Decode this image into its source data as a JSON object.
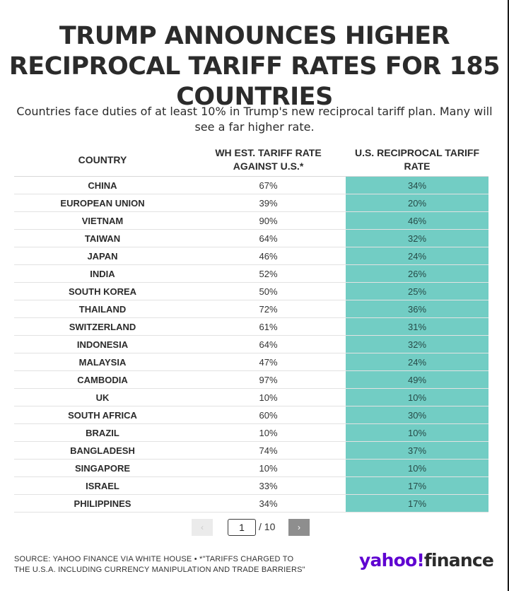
{
  "headline": "TRUMP ANNOUNCES HIGHER RECIPROCAL TARIFF RATES FOR 185 COUNTRIES",
  "subtitle": "Countries face duties of at least 10% in Trump's new reciprocal tariff plan. Many will see a far higher rate.",
  "chart_data": {
    "type": "table",
    "columns": [
      "COUNTRY",
      "WH EST. TARIFF RATE AGAINST U.S.*",
      "U.S. RECIPROCAL TARIFF RATE"
    ],
    "rows": [
      [
        "CHINA",
        "67%",
        "34%"
      ],
      [
        "EUROPEAN UNION",
        "39%",
        "20%"
      ],
      [
        "VIETNAM",
        "90%",
        "46%"
      ],
      [
        "TAIWAN",
        "64%",
        "32%"
      ],
      [
        "JAPAN",
        "46%",
        "24%"
      ],
      [
        "INDIA",
        "52%",
        "26%"
      ],
      [
        "SOUTH KOREA",
        "50%",
        "25%"
      ],
      [
        "THAILAND",
        "72%",
        "36%"
      ],
      [
        "SWITZERLAND",
        "61%",
        "31%"
      ],
      [
        "INDONESIA",
        "64%",
        "32%"
      ],
      [
        "MALAYSIA",
        "47%",
        "24%"
      ],
      [
        "CAMBODIA",
        "97%",
        "49%"
      ],
      [
        "UK",
        "10%",
        "10%"
      ],
      [
        "SOUTH AFRICA",
        "60%",
        "30%"
      ],
      [
        "BRAZIL",
        "10%",
        "10%"
      ],
      [
        "BANGLADESH",
        "74%",
        "37%"
      ],
      [
        "SINGAPORE",
        "10%",
        "10%"
      ],
      [
        "ISRAEL",
        "33%",
        "17%"
      ],
      [
        "PHILIPPINES",
        "34%",
        "17%"
      ]
    ],
    "highlight_color": "#72cdc4"
  },
  "pagination": {
    "prev_label": "‹",
    "current_page": "1",
    "total_label": "/ 10",
    "next_label": "›"
  },
  "source": "SOURCE: YAHOO FINANCE VIA WHITE HOUSE • *\"TARIFFS CHARGED TO THE U.S.A. INCLUDING CURRENCY MANIPULATION AND TRADE BARRIERS\"",
  "logo": {
    "brand": "yahoo!",
    "product": "finance",
    "brand_color": "#5f01d1"
  }
}
